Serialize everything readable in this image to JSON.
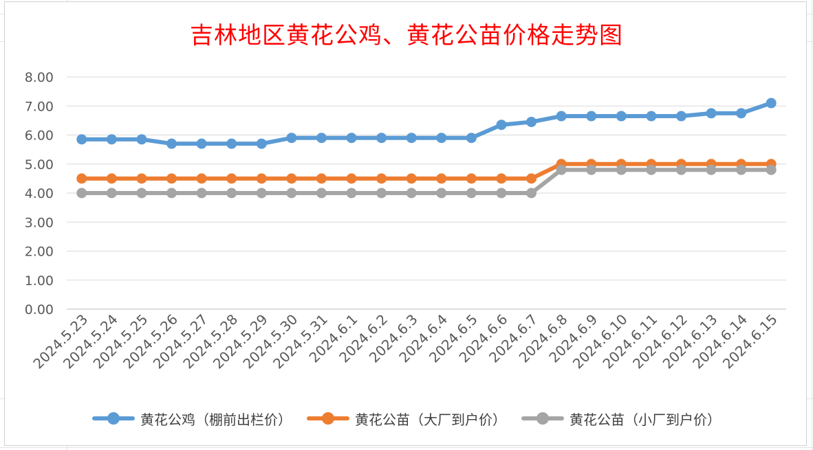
{
  "chart_data": {
    "type": "line",
    "title": "吉林地区黄花公鸡、黄花公苗价格走势图",
    "xlabel": "",
    "ylabel": "",
    "ylim": [
      0,
      8
    ],
    "yticks": [
      "0.00",
      "1.00",
      "2.00",
      "3.00",
      "4.00",
      "5.00",
      "6.00",
      "7.00",
      "8.00"
    ],
    "grid": true,
    "legend_position": "bottom",
    "categories": [
      "2024.5.23",
      "2024.5.24",
      "2024.5.25",
      "2024.5.26",
      "2024.5.27",
      "2024.5.28",
      "2024.5.29",
      "2024.5.30",
      "2024.5.31",
      "2024.6.1",
      "2024.6.2",
      "2024.6.3",
      "2024.6.4",
      "2024.6.5",
      "2024.6.6",
      "2024.6.7",
      "2024.6.8",
      "2024.6.9",
      "2024.6.10",
      "2024.6.11",
      "2024.6.12",
      "2024.6.13",
      "2024.6.14",
      "2024.6.15"
    ],
    "series": [
      {
        "name": "黄花公鸡（棚前出栏价）",
        "color": "#5b9bd5",
        "values": [
          5.85,
          5.85,
          5.85,
          5.7,
          5.7,
          5.7,
          5.7,
          5.9,
          5.9,
          5.9,
          5.9,
          5.9,
          5.9,
          5.9,
          6.35,
          6.45,
          6.65,
          6.65,
          6.65,
          6.65,
          6.65,
          6.75,
          6.75,
          7.1
        ]
      },
      {
        "name": "黄花公苗（大厂到户价）",
        "color": "#ed7d31",
        "values": [
          4.5,
          4.5,
          4.5,
          4.5,
          4.5,
          4.5,
          4.5,
          4.5,
          4.5,
          4.5,
          4.5,
          4.5,
          4.5,
          4.5,
          4.5,
          4.5,
          5.0,
          5.0,
          5.0,
          5.0,
          5.0,
          5.0,
          5.0,
          5.0
        ]
      },
      {
        "name": "黄花公苗（小厂到户价）",
        "color": "#a5a5a5",
        "values": [
          4.0,
          4.0,
          4.0,
          4.0,
          4.0,
          4.0,
          4.0,
          4.0,
          4.0,
          4.0,
          4.0,
          4.0,
          4.0,
          4.0,
          4.0,
          4.0,
          4.8,
          4.8,
          4.8,
          4.8,
          4.8,
          4.8,
          4.8,
          4.8
        ]
      }
    ]
  }
}
